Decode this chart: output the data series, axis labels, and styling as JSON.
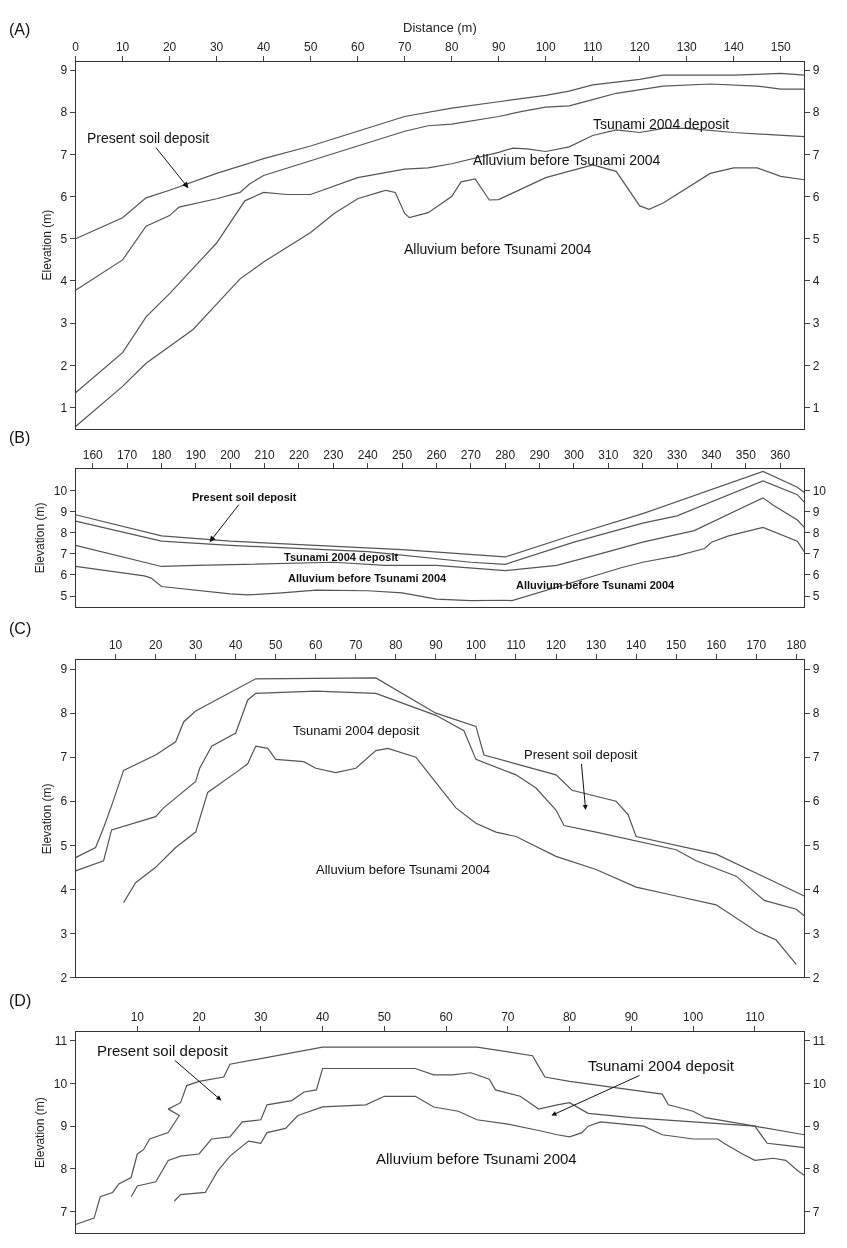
{
  "chart_data": [
    {
      "type": "line",
      "xlabel": "Distance (m)",
      "ylabel": "Elevation (m)",
      "xlim": [
        0,
        155
      ],
      "xticks": [
        0,
        10,
        20,
        30,
        40,
        50,
        60,
        70,
        80,
        90,
        100,
        110,
        120,
        130,
        140,
        150
      ],
      "ylim": [
        0.5,
        9.2
      ],
      "yticks": [
        1,
        2,
        3,
        4,
        5,
        6,
        7,
        8,
        9
      ],
      "y2lim": [
        0.5,
        9.2
      ],
      "y2ticks": [
        1,
        2,
        3,
        4,
        5,
        6,
        7,
        8,
        9
      ],
      "series": [
        {
          "color": "#555555",
          "x": [
            0,
            10,
            15,
            20,
            30,
            40,
            50,
            60,
            70,
            80,
            90,
            100,
            105,
            110,
            120,
            125,
            140,
            150,
            155
          ],
          "values": [
            5.0,
            5.5,
            5.97,
            6.15,
            6.55,
            6.9,
            7.2,
            7.55,
            7.9,
            8.1,
            8.25,
            8.4,
            8.5,
            8.65,
            8.78,
            8.88,
            8.88,
            8.92,
            8.88
          ]
        },
        {
          "color": "#555555",
          "x": [
            0,
            10,
            15,
            20,
            22,
            30,
            35,
            37,
            40,
            50,
            60,
            70,
            75,
            80,
            90,
            95,
            100,
            105,
            110,
            115,
            125,
            135,
            145,
            150,
            155
          ],
          "values": [
            3.78,
            4.5,
            5.3,
            5.55,
            5.75,
            5.95,
            6.1,
            6.3,
            6.5,
            6.85,
            7.2,
            7.55,
            7.68,
            7.72,
            7.9,
            8.02,
            8.12,
            8.15,
            8.3,
            8.45,
            8.62,
            8.67,
            8.62,
            8.55,
            8.55
          ]
        },
        {
          "color": "#555555",
          "x": [
            0,
            10,
            15,
            20,
            30,
            36,
            40,
            45,
            50,
            60,
            70,
            75,
            80,
            90,
            93,
            96,
            100,
            105,
            110,
            115,
            120,
            125,
            130,
            140,
            155
          ],
          "values": [
            1.35,
            2.3,
            3.15,
            3.7,
            4.9,
            5.9,
            6.1,
            6.05,
            6.05,
            6.45,
            6.65,
            6.68,
            6.78,
            7.05,
            7.15,
            7.13,
            7.07,
            7.18,
            7.45,
            7.58,
            7.52,
            7.62,
            7.62,
            7.52,
            7.42
          ]
        },
        {
          "color": "#555555",
          "x": [
            0,
            10,
            15,
            25,
            30,
            35,
            40,
            50,
            55,
            60,
            65,
            66,
            68,
            70,
            71,
            75,
            80,
            82,
            85,
            88,
            90,
            100,
            110,
            115,
            120,
            122,
            125,
            135,
            140,
            145,
            150,
            155
          ],
          "values": [
            0.55,
            1.5,
            2.05,
            2.85,
            3.45,
            4.05,
            4.45,
            5.15,
            5.6,
            5.95,
            6.12,
            6.15,
            6.1,
            5.6,
            5.5,
            5.62,
            6.0,
            6.35,
            6.42,
            5.92,
            5.93,
            6.45,
            6.75,
            6.6,
            5.78,
            5.7,
            5.85,
            6.55,
            6.68,
            6.68,
            6.48,
            6.4
          ]
        }
      ],
      "annotations": [
        "(A)",
        {
          "text": "Present soil deposit",
          "x": 24,
          "y": 6.2
        },
        "Tsunami 2004 deposit",
        "Alluvium before Tsunami 2004",
        "Alluvium before Tsunami 2004"
      ]
    },
    {
      "type": "line",
      "ylabel": "Elevation (m)",
      "xlim": [
        155,
        367
      ],
      "xticks": [
        160,
        170,
        180,
        190,
        200,
        210,
        220,
        230,
        240,
        250,
        260,
        270,
        280,
        290,
        300,
        310,
        320,
        330,
        340,
        350,
        360
      ],
      "ylim": [
        4.5,
        11
      ],
      "yticks": [
        5,
        6,
        7,
        8,
        9,
        10
      ],
      "y2lim": [
        4.5,
        11
      ],
      "y2ticks": [
        5,
        6,
        7,
        8,
        9,
        10
      ],
      "series": [
        {
          "color": "#555555",
          "x": [
            155,
            180,
            200,
            250,
            280,
            300,
            320,
            355,
            365,
            367
          ],
          "values": [
            8.85,
            7.85,
            7.6,
            7.2,
            6.85,
            7.9,
            8.9,
            10.9,
            10.15,
            9.9
          ]
        },
        {
          "color": "#555555",
          "x": [
            155,
            180,
            200,
            240,
            270,
            280,
            300,
            320,
            330,
            355,
            365,
            367
          ],
          "values": [
            8.55,
            7.6,
            7.4,
            7.1,
            6.6,
            6.5,
            7.55,
            8.45,
            8.8,
            10.45,
            9.8,
            9.45
          ]
        },
        {
          "color": "#555555",
          "x": [
            155,
            180,
            190,
            230,
            245,
            260,
            280,
            295,
            310,
            320,
            335,
            355,
            358,
            365,
            367
          ],
          "values": [
            7.4,
            6.4,
            6.45,
            6.6,
            6.45,
            6.45,
            6.2,
            6.45,
            7.1,
            7.55,
            8.1,
            9.65,
            9.3,
            8.6,
            8.25
          ]
        },
        {
          "color": "#555555",
          "x": [
            155,
            175,
            177,
            180,
            200,
            205,
            215,
            225,
            240,
            250,
            260,
            270,
            280,
            282,
            314,
            320,
            330,
            338,
            340,
            345,
            355,
            365,
            367
          ],
          "values": [
            6.4,
            5.95,
            5.85,
            5.45,
            5.1,
            5.05,
            5.15,
            5.28,
            5.25,
            5.15,
            4.85,
            4.78,
            4.8,
            4.78,
            6.35,
            6.6,
            6.9,
            7.25,
            7.55,
            7.85,
            8.25,
            7.6,
            7.1
          ]
        }
      ],
      "annotations": [
        "(B)",
        {
          "text": "Present soil deposit",
          "x": 194,
          "y": 7.55
        },
        "Tsunami 2004 deposit",
        "Alluvium before Tsunami 2004",
        "Alluvium before Tsunami 2004"
      ]
    },
    {
      "type": "line",
      "ylabel": "Elevation (m)",
      "xlim": [
        0,
        182
      ],
      "xticks": [
        10,
        20,
        30,
        40,
        50,
        60,
        70,
        80,
        90,
        100,
        110,
        120,
        130,
        140,
        150,
        160,
        170,
        180
      ],
      "ylim": [
        2,
        9.2
      ],
      "yticks": [
        2,
        3,
        4,
        5,
        6,
        7,
        8,
        9
      ],
      "y2lim": [
        2,
        9.2
      ],
      "y2ticks": [
        2,
        3,
        4,
        5,
        6,
        7,
        8,
        9
      ],
      "series": [
        {
          "color": "#555555",
          "x": [
            0,
            5,
            7,
            9,
            12,
            20,
            25,
            27,
            30,
            45,
            75,
            90,
            100,
            102,
            110,
            120,
            124,
            135,
            138,
            140,
            160,
            182
          ],
          "values": [
            4.72,
            4.95,
            5.4,
            5.9,
            6.7,
            7.05,
            7.35,
            7.8,
            8.05,
            8.78,
            8.8,
            8.0,
            7.7,
            7.05,
            6.85,
            6.6,
            6.25,
            6.0,
            5.7,
            5.2,
            4.8,
            3.85
          ]
        },
        {
          "color": "#555555",
          "x": [
            0,
            7,
            9,
            20,
            22,
            30,
            31,
            34,
            40,
            43,
            45,
            60,
            75,
            90,
            97,
            100,
            110,
            115,
            120,
            122,
            130,
            150,
            155,
            165,
            172,
            180,
            182
          ],
          "values": [
            4.42,
            4.65,
            5.35,
            5.65,
            5.85,
            6.45,
            6.75,
            7.25,
            7.55,
            8.3,
            8.45,
            8.5,
            8.45,
            7.95,
            7.6,
            6.95,
            6.6,
            6.3,
            5.8,
            5.45,
            5.3,
            4.9,
            4.65,
            4.3,
            3.75,
            3.55,
            3.4
          ]
        },
        {
          "color": "#555555",
          "x": [
            12,
            15,
            20,
            25,
            30,
            33,
            40,
            43,
            45,
            48,
            50,
            57,
            60,
            65,
            70,
            75,
            78,
            85,
            95,
            100,
            105,
            110,
            120,
            130,
            140,
            150,
            160,
            170,
            175,
            180
          ],
          "values": [
            3.7,
            4.15,
            4.5,
            4.95,
            5.3,
            6.2,
            6.65,
            6.85,
            7.25,
            7.2,
            6.95,
            6.9,
            6.75,
            6.65,
            6.75,
            7.15,
            7.2,
            7.0,
            5.85,
            5.5,
            5.3,
            5.2,
            4.75,
            4.45,
            4.05,
            3.85,
            3.65,
            3.05,
            2.85,
            2.3
          ]
        }
      ],
      "annotations": [
        "(C)",
        "Tsunami 2004 deposit",
        "Present soil deposit",
        "Alluvium before Tsunami 2004"
      ]
    },
    {
      "type": "line",
      "ylabel": "Elevation (m)",
      "xlim": [
        0,
        118
      ],
      "xticks": [
        10,
        20,
        30,
        40,
        50,
        60,
        70,
        80,
        90,
        100,
        110
      ],
      "ylim": [
        6.5,
        11.2
      ],
      "yticks": [
        7,
        8,
        9,
        10,
        11
      ],
      "y2lim": [
        6.5,
        11.2
      ],
      "y2ticks": [
        7,
        8,
        9,
        10,
        11
      ],
      "series": [
        {
          "color": "#555555",
          "x": [
            0,
            3,
            4,
            6,
            7,
            9,
            10,
            11,
            12,
            15,
            16.8,
            15,
            17,
            18,
            20,
            24,
            25,
            40,
            65,
            74,
            75,
            76,
            80,
            95,
            96,
            100,
            102,
            110,
            118
          ],
          "values": [
            6.7,
            6.85,
            7.35,
            7.45,
            7.65,
            7.8,
            8.35,
            8.45,
            8.7,
            8.85,
            9.25,
            9.4,
            9.55,
            9.95,
            10.05,
            10.15,
            10.45,
            10.85,
            10.85,
            10.65,
            10.4,
            10.15,
            10.05,
            9.75,
            9.5,
            9.35,
            9.2,
            9.0,
            8.8
          ]
        },
        {
          "color": "#555555",
          "x": [
            9,
            10,
            13,
            15,
            17,
            20,
            22,
            25,
            27,
            30,
            31,
            35,
            37,
            39,
            40,
            55,
            58,
            61,
            64,
            67,
            68,
            72,
            75,
            78,
            80,
            83,
            90,
            100,
            110,
            112,
            115,
            118
          ],
          "values": [
            7.35,
            7.6,
            7.7,
            8.2,
            8.3,
            8.35,
            8.7,
            8.75,
            9.1,
            9.15,
            9.5,
            9.6,
            9.8,
            9.85,
            10.35,
            10.35,
            10.2,
            10.2,
            10.25,
            10.1,
            9.85,
            9.7,
            9.4,
            9.5,
            9.55,
            9.3,
            9.2,
            9.1,
            9.0,
            8.6,
            8.55,
            8.5
          ]
        },
        {
          "color": "#555555",
          "x": [
            16,
            17,
            21,
            23,
            25,
            28,
            30,
            31,
            34,
            36,
            40,
            47,
            50,
            55,
            58,
            62,
            65,
            70,
            75,
            78,
            80,
            82,
            83,
            85,
            92,
            95,
            100,
            104,
            105,
            108,
            110,
            113,
            115,
            117,
            118
          ],
          "values": [
            7.25,
            7.4,
            7.45,
            7.95,
            8.3,
            8.65,
            8.6,
            8.85,
            8.95,
            9.25,
            9.45,
            9.5,
            9.7,
            9.7,
            9.45,
            9.35,
            9.15,
            9.05,
            8.9,
            8.8,
            8.75,
            8.85,
            9.0,
            9.1,
            9.0,
            8.8,
            8.7,
            8.7,
            8.6,
            8.35,
            8.2,
            8.25,
            8.2,
            7.95,
            7.85
          ]
        }
      ],
      "annotations": [
        "(D)",
        "Present soil deposit",
        "Tsunami 2004 deposit",
        "Alluvium before Tsunami 2004"
      ]
    }
  ]
}
